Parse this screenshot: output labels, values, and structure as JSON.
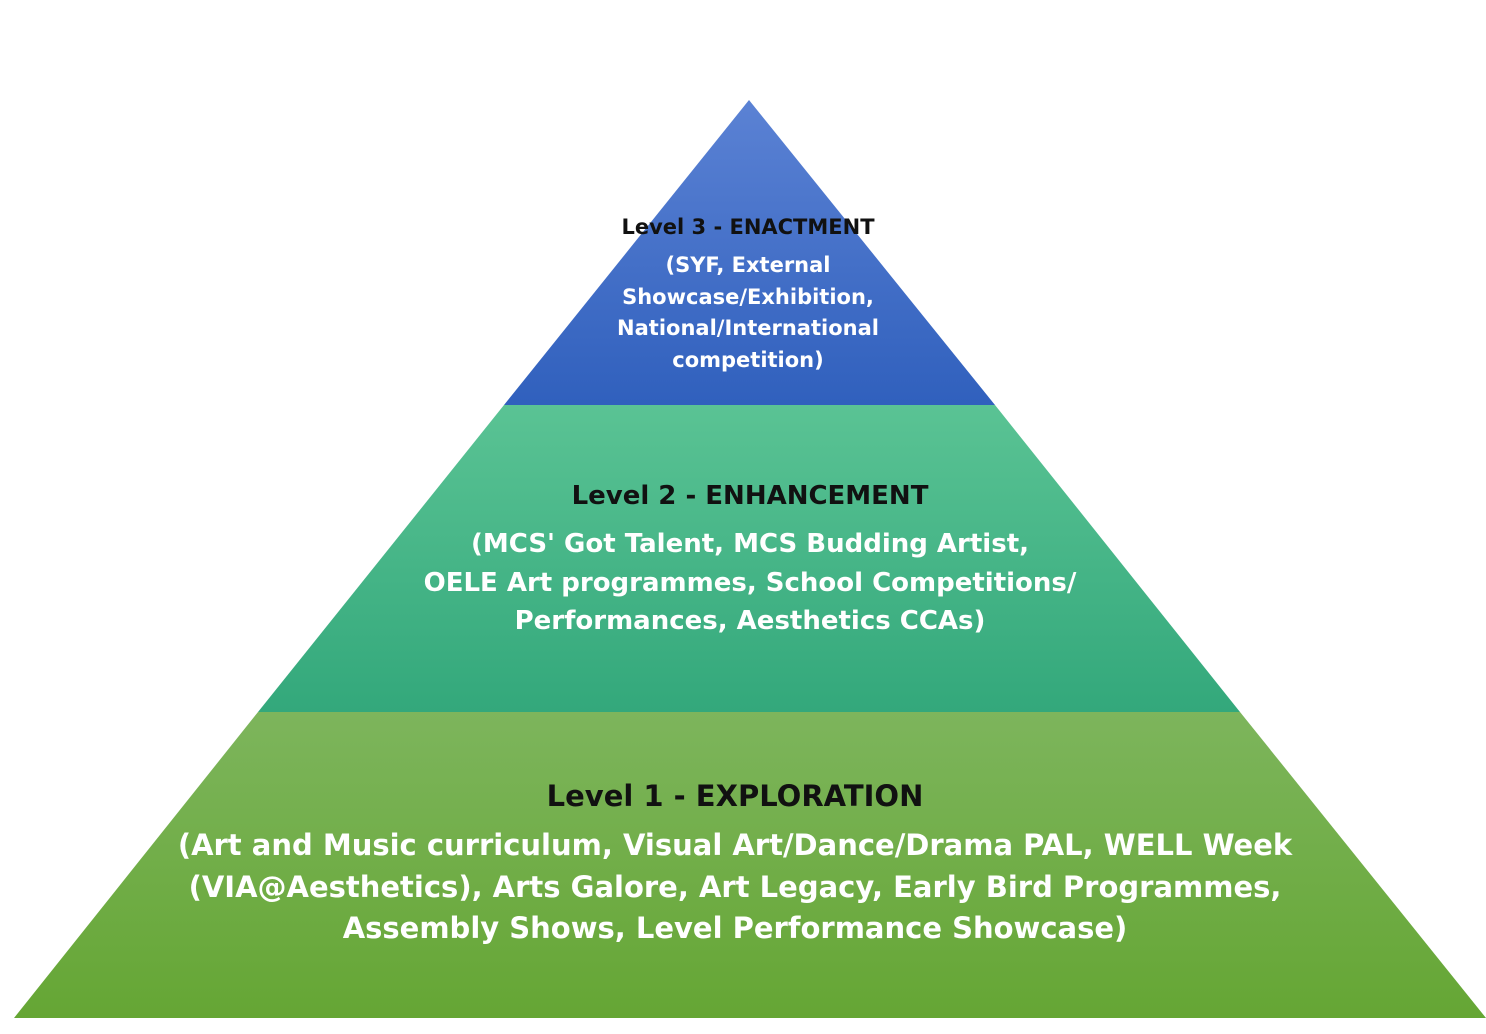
{
  "levels": [
    {
      "title": "Level 3 - ENACTMENT",
      "lines": [
        "(SYF, External",
        "Showcase/Exhibition,",
        "National/International",
        "competition)"
      ],
      "color_top": "#5b82d4",
      "color_bottom": "#3060bd"
    },
    {
      "title": "Level 2 - ENHANCEMENT",
      "lines": [
        "(MCS' Got Talent, MCS Budding Artist,",
        "OELE Art programmes, School Competitions/",
        "Performances, Aesthetics CCAs)"
      ],
      "color_top": "#5ac394",
      "color_bottom": "#33a87b"
    },
    {
      "title": "Level 1 - EXPLORATION",
      "lines": [
        "(Art and Music curriculum, Visual Art/Dance/Drama PAL, WELL Week",
        "(VIA@Aesthetics), Arts Galore, Art Legacy, Early Bird Programmes,",
        "Assembly Shows, Level Performance Showcase)"
      ],
      "color_top": "#7db55c",
      "color_bottom": "#65a634"
    }
  ]
}
